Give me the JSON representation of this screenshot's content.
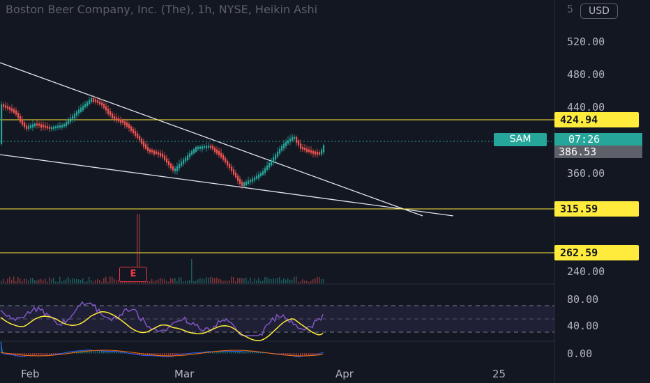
{
  "header": {
    "title": "Boston Beer Company, Inc. (The), 1h, NYSE, Heikin Ashi"
  },
  "price_axis": {
    "currency": "USD",
    "top_partial": "5",
    "ticks": [
      "520.00",
      "480.00",
      "440.00",
      "360.00",
      "240.00"
    ],
    "indicator_ticks": [
      "80.00",
      "40.00",
      "0.00"
    ]
  },
  "levels": [
    {
      "value": "424.94"
    },
    {
      "value": "315.59"
    },
    {
      "value": "262.59"
    }
  ],
  "symbol": {
    "ticker": "SAM",
    "countdown": "07:26",
    "last_price": "386.53"
  },
  "time_axis": [
    "Feb",
    "Mar",
    "Apr",
    "25"
  ],
  "earnings_marker": "E",
  "colors": {
    "background": "#131722",
    "up": "#26a69a",
    "down": "#ef5350",
    "level": "#ffeb3b",
    "rsi": "#7e57c2",
    "rsi_ma": "#ffeb3b"
  }
}
